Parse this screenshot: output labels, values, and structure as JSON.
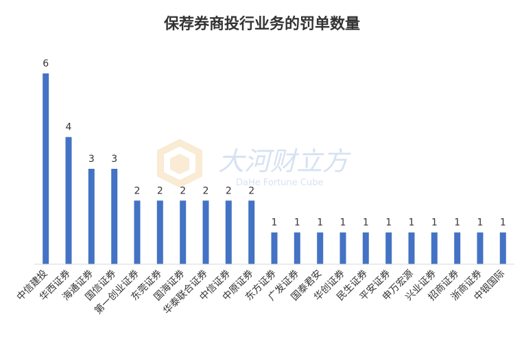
{
  "chart_data": {
    "type": "bar",
    "title": "保荐券商投行业务的罚单数量",
    "xlabel": "",
    "ylabel": "",
    "ylim": [
      0,
      6
    ],
    "grid": false,
    "legend": "none",
    "bar_color": "#4472C4",
    "categories": [
      "中信建投",
      "华西证券",
      "海通证券",
      "国信证券",
      "第一创业证券",
      "东莞证券",
      "国海证券",
      "华泰联合证券",
      "中信证券",
      "中原证券",
      "东方证券",
      "广发证券",
      "国泰君安",
      "华创证券",
      "民生证券",
      "平安证券",
      "申万宏源",
      "兴业证券",
      "招商证券",
      "浙商证券",
      "中银国际"
    ],
    "values": [
      6,
      4,
      3,
      3,
      2,
      2,
      2,
      2,
      2,
      2,
      1,
      1,
      1,
      1,
      1,
      1,
      1,
      1,
      1,
      1,
      1
    ]
  },
  "watermark": {
    "name": "大河财立方",
    "subtitle": "DaHe Fortune Cube"
  }
}
